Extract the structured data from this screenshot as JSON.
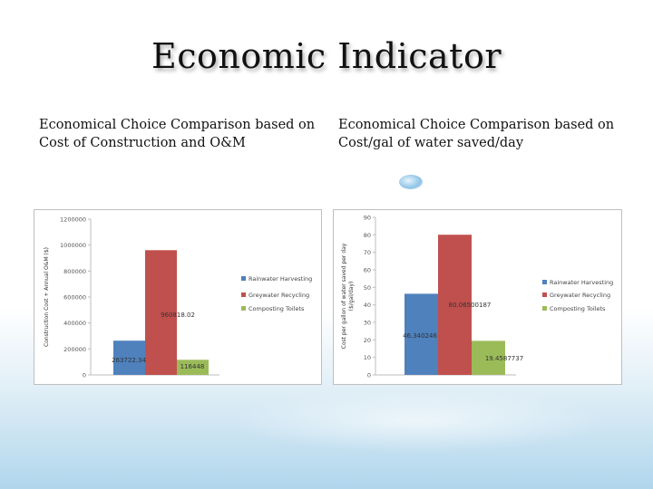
{
  "slide": {
    "title": "Economic Indicator",
    "left_subtitle": "Economical Choice Comparison based on Cost of Construction and O&M",
    "right_subtitle": "Economical Choice Comparison based on Cost/gal of water saved/day"
  },
  "colors": {
    "rainwater": "#4f81bd",
    "greywater": "#c0504d",
    "composting": "#9bbb59"
  },
  "chart_data": [
    {
      "type": "bar",
      "categories": [
        "Rainwater Harvesting",
        "Greywater Recycling",
        "Composting Toilets"
      ],
      "values": [
        263722.34,
        960818.02,
        116448
      ],
      "data_labels": [
        "263722.34",
        "960818.02",
        "116448"
      ],
      "ylabel": "Construction Cost + Annual O&M ($)",
      "ylim": [
        0,
        1200000
      ],
      "yticks": [
        0,
        200000,
        400000,
        600000,
        800000,
        1000000,
        1200000
      ],
      "ytick_labels": [
        "0",
        "200000",
        "400000",
        "600000",
        "800000",
        "1000000",
        "1200000"
      ],
      "legend_position": "right",
      "grid": false
    },
    {
      "type": "bar",
      "categories": [
        "Rainwater Harvesting",
        "Greywater Recycling",
        "Composting Toilets"
      ],
      "values": [
        46.340246,
        80.06500187,
        19.4587737
      ],
      "data_labels": [
        "46.340246",
        "80.06500187",
        "19.4587737"
      ],
      "ylabel": "Cost per gallon of water saved per day ($/gal/day)",
      "ylim": [
        0,
        90
      ],
      "yticks": [
        0,
        10,
        20,
        30,
        40,
        50,
        60,
        70,
        80,
        90
      ],
      "ytick_labels": [
        "0",
        "10",
        "20",
        "30",
        "40",
        "50",
        "60",
        "70",
        "80",
        "90"
      ],
      "legend_position": "right",
      "grid": false
    }
  ]
}
